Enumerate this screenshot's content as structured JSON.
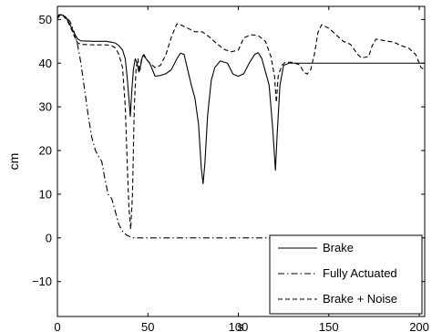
{
  "chart_data": {
    "type": "line",
    "title": "",
    "xlabel": "s",
    "ylabel": "cm",
    "xlim": [
      0,
      203
    ],
    "ylim": [
      -18,
      53
    ],
    "grid": false,
    "legend_position": "bottom-right",
    "x_ticks": [
      0,
      50,
      100,
      150,
      200
    ],
    "y_ticks": [
      -10,
      0,
      10,
      20,
      30,
      40,
      50
    ],
    "x_tick_labels": [
      "0",
      "50",
      "100",
      "150",
      "200"
    ],
    "y_tick_labels": [
      "−10",
      "0",
      "10",
      "20",
      "30",
      "40",
      "50"
    ],
    "series": [
      {
        "name": "Brake",
        "dash": "solid",
        "color": "#000000",
        "points": [
          [
            0,
            50.5
          ],
          [
            1,
            51.1
          ],
          [
            3,
            51
          ],
          [
            5,
            50.3
          ],
          [
            7,
            48.8
          ],
          [
            9,
            47.1
          ],
          [
            11,
            45.6
          ],
          [
            13,
            45.1
          ],
          [
            20,
            45
          ],
          [
            27,
            45
          ],
          [
            30,
            44.8
          ],
          [
            32,
            44.6
          ],
          [
            34,
            44
          ],
          [
            36,
            43
          ],
          [
            37.5,
            41
          ],
          [
            38.5,
            37
          ],
          [
            39.5,
            32
          ],
          [
            40.3,
            27.8
          ],
          [
            41,
            33
          ],
          [
            42,
            38.5
          ],
          [
            43,
            41
          ],
          [
            44,
            40
          ],
          [
            45,
            38
          ],
          [
            46,
            39.5
          ],
          [
            47,
            41.5
          ],
          [
            47.8,
            42
          ],
          [
            49,
            41
          ],
          [
            51,
            40
          ],
          [
            54,
            37
          ],
          [
            57,
            37.2
          ],
          [
            60,
            37.6
          ],
          [
            63,
            38.5
          ],
          [
            66,
            41
          ],
          [
            68,
            42.3
          ],
          [
            70,
            42
          ],
          [
            72,
            38.5
          ],
          [
            74,
            35
          ],
          [
            76,
            32
          ],
          [
            78,
            26
          ],
          [
            79.5,
            16
          ],
          [
            80.5,
            12.4
          ],
          [
            81.5,
            17
          ],
          [
            83,
            28
          ],
          [
            85,
            36
          ],
          [
            87,
            39
          ],
          [
            90,
            40.5
          ],
          [
            94,
            40
          ],
          [
            97,
            37.5
          ],
          [
            100,
            37
          ],
          [
            103,
            37.6
          ],
          [
            106,
            40
          ],
          [
            109,
            42
          ],
          [
            111,
            42.4
          ],
          [
            113,
            41
          ],
          [
            115,
            38
          ],
          [
            117,
            35
          ],
          [
            119,
            25
          ],
          [
            120.5,
            15.5
          ],
          [
            121.5,
            24
          ],
          [
            123,
            35
          ],
          [
            125,
            39.5
          ],
          [
            128,
            40
          ],
          [
            140,
            40
          ],
          [
            160,
            40
          ],
          [
            180,
            40
          ],
          [
            203,
            40
          ]
        ]
      },
      {
        "name": "Fully Actuated",
        "dash": "dashdot",
        "color": "#000000",
        "points": [
          [
            0,
            50.5
          ],
          [
            1,
            51.1
          ],
          [
            3,
            51
          ],
          [
            5,
            50.5
          ],
          [
            7,
            49.5
          ],
          [
            9,
            47.5
          ],
          [
            11,
            44.5
          ],
          [
            13,
            40
          ],
          [
            15,
            34
          ],
          [
            17,
            28
          ],
          [
            19,
            23
          ],
          [
            21,
            20
          ],
          [
            23,
            18.5
          ],
          [
            24.5,
            17.5
          ],
          [
            26,
            14
          ],
          [
            28,
            10
          ],
          [
            30,
            9
          ],
          [
            32,
            6
          ],
          [
            34,
            3
          ],
          [
            36,
            1.5
          ],
          [
            38,
            0.7
          ],
          [
            40,
            0.3
          ],
          [
            42,
            0
          ],
          [
            46,
            0
          ],
          [
            50,
            0
          ],
          [
            100,
            0
          ],
          [
            150,
            0
          ],
          [
            203,
            0
          ]
        ]
      },
      {
        "name": "Brake + Noise",
        "dash": "dashed",
        "color": "#000000",
        "points": [
          [
            0,
            50.2
          ],
          [
            1.5,
            51
          ],
          [
            3,
            50.9
          ],
          [
            5,
            50
          ],
          [
            7,
            48.5
          ],
          [
            9,
            46.5
          ],
          [
            11,
            44.7
          ],
          [
            13,
            44.3
          ],
          [
            20,
            44.2
          ],
          [
            27,
            44.2
          ],
          [
            30,
            44
          ],
          [
            32,
            43.5
          ],
          [
            34,
            42
          ],
          [
            36,
            39
          ],
          [
            37.5,
            30
          ],
          [
            38.5,
            18
          ],
          [
            39.5,
            7
          ],
          [
            40.5,
            2
          ],
          [
            41.5,
            10
          ],
          [
            42.5,
            30
          ],
          [
            43.5,
            39
          ],
          [
            44.5,
            41
          ],
          [
            45.5,
            38
          ],
          [
            46.5,
            41
          ],
          [
            47.5,
            41.8
          ],
          [
            49,
            41
          ],
          [
            51,
            40
          ],
          [
            54,
            39
          ],
          [
            57,
            39.5
          ],
          [
            60,
            42
          ],
          [
            63,
            46
          ],
          [
            66,
            49
          ],
          [
            68,
            48.8
          ],
          [
            72,
            48
          ],
          [
            76,
            47.2
          ],
          [
            80,
            47.2
          ],
          [
            84,
            46
          ],
          [
            88,
            44.5
          ],
          [
            92,
            43.2
          ],
          [
            96,
            42.6
          ],
          [
            100,
            43
          ],
          [
            103,
            45.8
          ],
          [
            107,
            46.5
          ],
          [
            111,
            46.3
          ],
          [
            115,
            45
          ],
          [
            118,
            41.5
          ],
          [
            120,
            37
          ],
          [
            121,
            31
          ],
          [
            122,
            37
          ],
          [
            124,
            39.5
          ],
          [
            126,
            40.2
          ],
          [
            130,
            40.2
          ],
          [
            134,
            39.6
          ],
          [
            136,
            38
          ],
          [
            138,
            37.5
          ],
          [
            140,
            38.5
          ],
          [
            142,
            42
          ],
          [
            144,
            47
          ],
          [
            146,
            48.8
          ],
          [
            150,
            48
          ],
          [
            154,
            46.5
          ],
          [
            158,
            45
          ],
          [
            162,
            44.3
          ],
          [
            166,
            42
          ],
          [
            168,
            41.2
          ],
          [
            172,
            41.5
          ],
          [
            174,
            44
          ],
          [
            176,
            45.5
          ],
          [
            180,
            45.2
          ],
          [
            186,
            44.8
          ],
          [
            190,
            44
          ],
          [
            194,
            43.5
          ],
          [
            198,
            42
          ],
          [
            201,
            39
          ],
          [
            203,
            38.5
          ]
        ]
      }
    ]
  }
}
